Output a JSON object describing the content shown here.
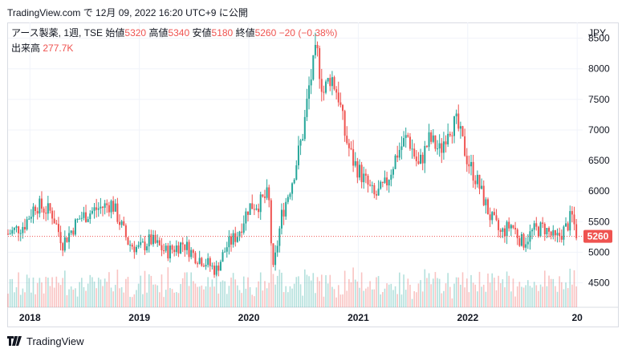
{
  "header": {
    "caption": "TradingView.com で 12月 09, 2022 16:20 UTC+9 に公開"
  },
  "legend": {
    "symbol": "アース製薬, 1週, TSE",
    "open_label": "始値",
    "open": "5320",
    "high_label": "高値",
    "high": "5340",
    "low_label": "安値",
    "low": "5180",
    "close_label": "終値",
    "close": "5260",
    "change": "−20 (−0.38%)",
    "volume_label": "出来高",
    "volume": "277.7K"
  },
  "axis": {
    "currency": "JPY",
    "last_price_label": "5260"
  },
  "footer": {
    "brand": "TradingView"
  },
  "colors": {
    "up": "#26a69a",
    "down": "#ef5350",
    "grid": "#f0f3fa"
  },
  "chart_data": {
    "type": "candlestick",
    "interval": "1W",
    "ylim": [
      4100,
      8600
    ],
    "y_ticks": [
      4500,
      5000,
      5500,
      6000,
      6500,
      7000,
      7500,
      8000,
      8500
    ],
    "x_ticks": [
      "2018",
      "2019",
      "2020",
      "2021",
      "2022",
      "20"
    ],
    "last_price": 5260,
    "close_path": [
      [
        2017.8,
        5300
      ],
      [
        2017.95,
        5450
      ],
      [
        2018.05,
        5780
      ],
      [
        2018.2,
        5650
      ],
      [
        2018.3,
        5150
      ],
      [
        2018.45,
        5550
      ],
      [
        2018.6,
        5700
      ],
      [
        2018.75,
        5800
      ],
      [
        2018.9,
        5150
      ],
      [
        2019.0,
        5050
      ],
      [
        2019.1,
        5200
      ],
      [
        2019.25,
        5000
      ],
      [
        2019.4,
        5150
      ],
      [
        2019.5,
        4950
      ],
      [
        2019.6,
        4850
      ],
      [
        2019.7,
        4700
      ],
      [
        2019.8,
        5100
      ],
      [
        2019.9,
        5300
      ],
      [
        2020.0,
        5750
      ],
      [
        2020.1,
        5800
      ],
      [
        2020.18,
        5950
      ],
      [
        2020.22,
        4650
      ],
      [
        2020.3,
        5600
      ],
      [
        2020.4,
        6200
      ],
      [
        2020.5,
        7000
      ],
      [
        2020.55,
        7700
      ],
      [
        2020.62,
        8300
      ],
      [
        2020.68,
        7600
      ],
      [
        2020.75,
        7900
      ],
      [
        2020.82,
        7550
      ],
      [
        2020.88,
        6900
      ],
      [
        2020.95,
        6500
      ],
      [
        2021.05,
        6200
      ],
      [
        2021.15,
        5900
      ],
      [
        2021.25,
        6100
      ],
      [
        2021.35,
        6600
      ],
      [
        2021.45,
        6900
      ],
      [
        2021.55,
        6400
      ],
      [
        2021.65,
        6850
      ],
      [
        2021.75,
        6650
      ],
      [
        2021.82,
        7050
      ],
      [
        2021.9,
        7100
      ],
      [
        2022.0,
        6500
      ],
      [
        2022.1,
        6100
      ],
      [
        2022.2,
        5600
      ],
      [
        2022.3,
        5300
      ],
      [
        2022.4,
        5450
      ],
      [
        2022.5,
        5150
      ],
      [
        2022.6,
        5350
      ],
      [
        2022.7,
        5400
      ],
      [
        2022.8,
        5200
      ],
      [
        2022.9,
        5400
      ],
      [
        2022.95,
        5600
      ],
      [
        2023.0,
        5260
      ]
    ]
  }
}
